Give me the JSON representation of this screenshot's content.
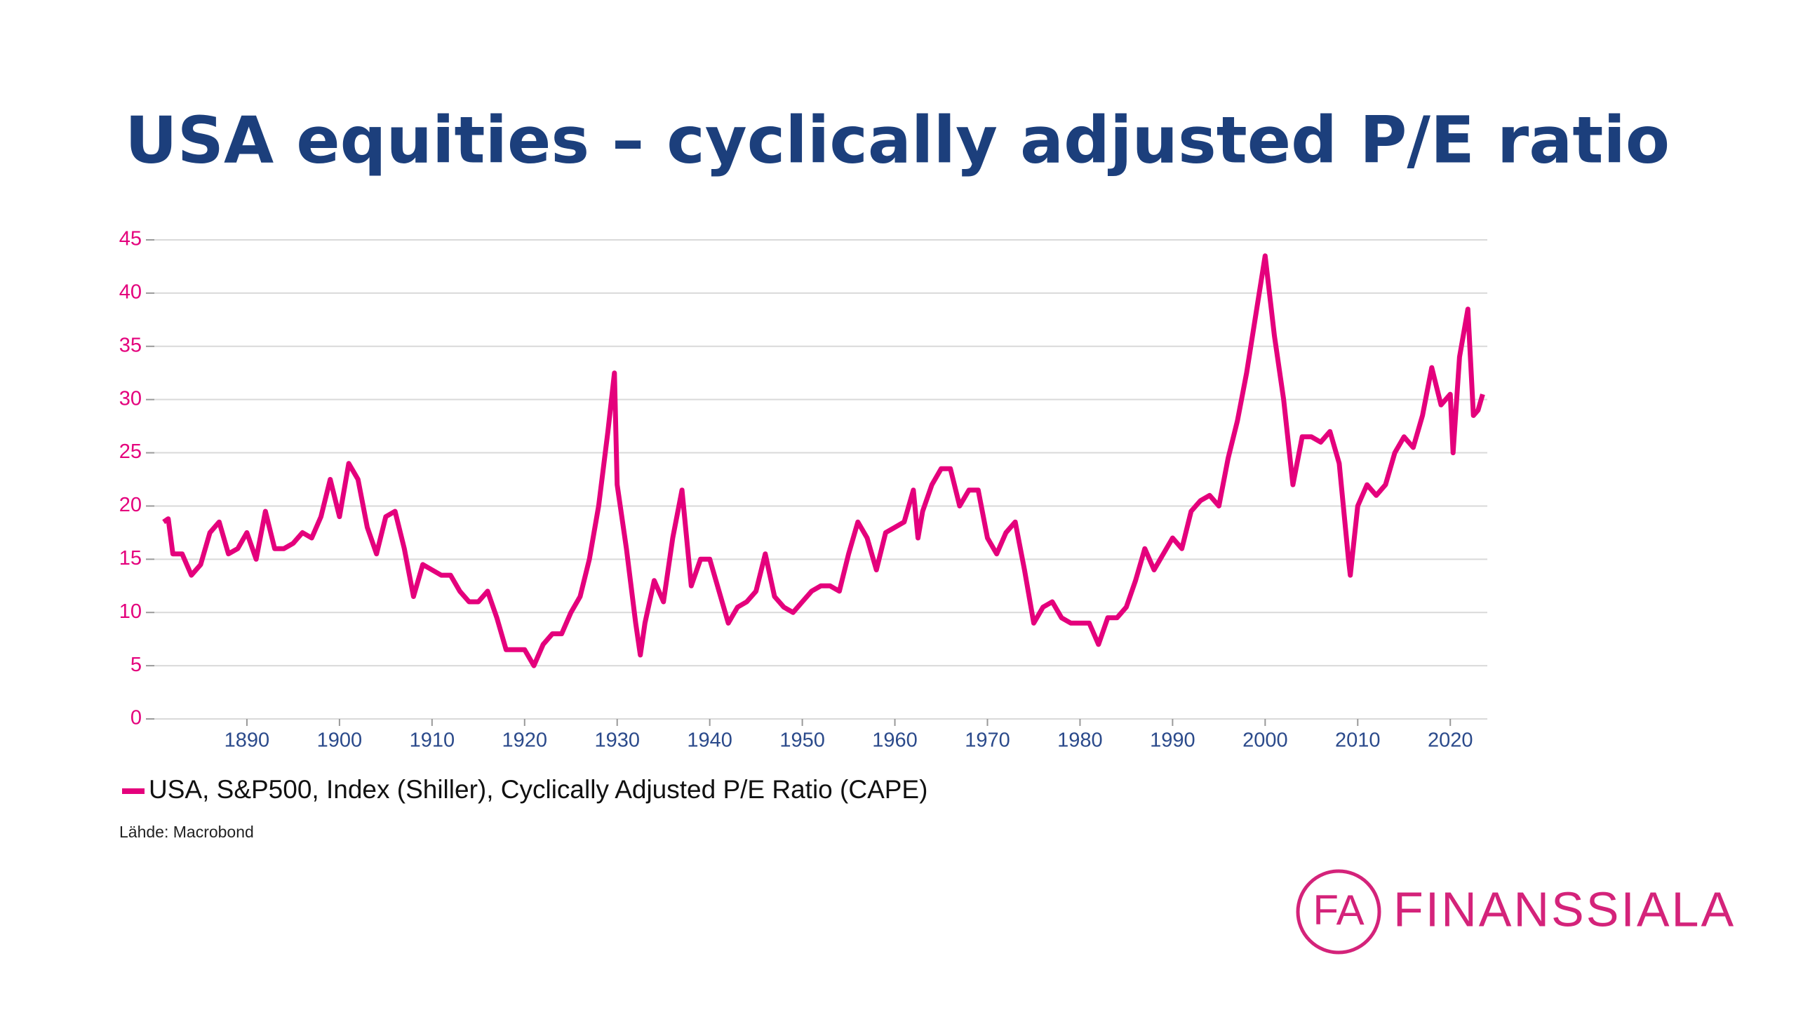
{
  "chart_data": {
    "type": "line",
    "title": "USA equities – cyclically adjusted P/E ratio",
    "source": "Lähde: Macrobond",
    "x": [
      1881,
      1881.5,
      1882,
      1883,
      1884,
      1885,
      1886,
      1887,
      1888,
      1889,
      1890,
      1891,
      1892,
      1893,
      1894,
      1895,
      1896,
      1897,
      1898,
      1899,
      1900,
      1901,
      1902,
      1903,
      1904,
      1905,
      1906,
      1907,
      1908,
      1909,
      1910,
      1911,
      1912,
      1913,
      1914,
      1915,
      1916,
      1917,
      1918,
      1919,
      1920,
      1921,
      1922,
      1923,
      1924,
      1925,
      1926,
      1927,
      1928,
      1929,
      1929.7,
      1930,
      1931,
      1932,
      1932.5,
      1933,
      1934,
      1935,
      1936,
      1937,
      1938,
      1939,
      1940,
      1941,
      1942,
      1943,
      1944,
      1945,
      1946,
      1947,
      1948,
      1949,
      1950,
      1951,
      1952,
      1953,
      1954,
      1955,
      1956,
      1957,
      1958,
      1959,
      1960,
      1961,
      1962,
      1962.5,
      1963,
      1964,
      1965,
      1966,
      1967,
      1968,
      1969,
      1970,
      1971,
      1972,
      1973,
      1974,
      1975,
      1976,
      1977,
      1978,
      1979,
      1980,
      1981,
      1982,
      1983,
      1984,
      1985,
      1986,
      1987,
      1988,
      1989,
      1990,
      1991,
      1992,
      1993,
      1994,
      1995,
      1996,
      1997,
      1998,
      1999,
      2000,
      2001,
      2002,
      2003,
      2004,
      2005,
      2006,
      2007,
      2008,
      2009,
      2009.2,
      2010,
      2011,
      2012,
      2013,
      2014,
      2015,
      2016,
      2017,
      2018,
      2019,
      2020,
      2020.3,
      2021,
      2021.9,
      2022.5,
      2023,
      2023.5
    ],
    "series": [
      {
        "name": "USA, S&P500, Index (Shiller), Cyclically Adjusted P/E Ratio (CAPE)",
        "color": "#e4007c",
        "values": [
          18.5,
          18.8,
          15.5,
          15.5,
          13.5,
          14.5,
          17.5,
          18.5,
          15.5,
          16,
          17.5,
          15,
          19.5,
          16,
          16,
          16.5,
          17.5,
          17,
          19,
          22.5,
          19,
          24,
          22.5,
          18,
          15.5,
          19,
          19.5,
          16,
          11.5,
          14.5,
          14,
          13.5,
          13.5,
          12,
          11,
          11,
          12,
          9.5,
          6.5,
          6.5,
          6.5,
          5,
          7,
          8,
          8,
          10,
          11.5,
          15,
          20,
          27,
          32.5,
          22,
          16,
          9,
          6,
          9,
          13,
          11,
          17,
          21.5,
          12.5,
          15,
          15,
          12,
          9,
          10.5,
          11,
          12,
          15.5,
          11.5,
          10.5,
          10,
          11,
          12,
          12.5,
          12.5,
          12,
          15.5,
          18.5,
          17,
          14,
          17.5,
          18,
          18.5,
          21.5,
          17,
          19.5,
          22,
          23.5,
          23.5,
          20,
          21.5,
          21.5,
          17,
          15.5,
          17.5,
          18.5,
          14,
          9,
          10.5,
          11,
          9.5,
          9,
          9,
          9,
          7,
          9.5,
          9.5,
          10.5,
          13,
          16,
          14,
          15.5,
          17,
          16,
          19.5,
          20.5,
          21,
          20,
          24.5,
          28,
          32.5,
          38,
          43.5,
          36,
          30,
          22,
          26.5,
          26.5,
          26,
          27,
          24,
          15,
          13.5,
          20,
          22,
          21,
          22,
          25,
          26.5,
          25.5,
          28.5,
          33,
          29.5,
          30.5,
          25,
          34,
          38.5,
          28.5,
          29,
          30.5
        ]
      }
    ],
    "xlim": [
      1880,
      2024
    ],
    "xticks": [
      1890,
      1900,
      1910,
      1920,
      1930,
      1940,
      1950,
      1960,
      1970,
      1980,
      1990,
      2000,
      2010,
      2020
    ],
    "ylim": [
      0,
      45
    ],
    "yticks": [
      0,
      5,
      10,
      15,
      20,
      25,
      30,
      35,
      40,
      45
    ],
    "grid": true
  },
  "logo": {
    "mark": "FA",
    "text": "FINANSSIALA"
  }
}
